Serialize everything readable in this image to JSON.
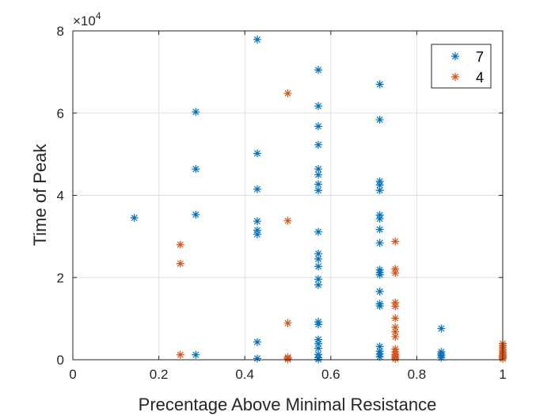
{
  "chart_data": {
    "type": "scatter",
    "title": "",
    "xlabel": "Precentage Above Minimal Resistance",
    "ylabel": "Time of Peak",
    "xlim": [
      0,
      1
    ],
    "ylim": [
      0,
      80000
    ],
    "y_exponent_label": {
      "base": "×10",
      "power": "4"
    },
    "x_ticks": [
      0,
      0.2,
      0.4,
      0.6,
      0.8,
      1
    ],
    "x_tick_labels": [
      "0",
      "0.2",
      "0.4",
      "0.6",
      "0.8",
      "1"
    ],
    "y_ticks": [
      0,
      20000,
      40000,
      60000,
      80000
    ],
    "y_tick_labels": [
      "0",
      "2",
      "4",
      "6",
      "8"
    ],
    "grid": true,
    "legend_position": "top-right",
    "marker": "asterisk",
    "series": [
      {
        "name": "7",
        "color": "#0072BD",
        "points": [
          [
            0.143,
            34500
          ],
          [
            0.286,
            60300
          ],
          [
            0.286,
            46400
          ],
          [
            0.286,
            35300
          ],
          [
            0.286,
            1200
          ],
          [
            0.429,
            77900
          ],
          [
            0.429,
            50200
          ],
          [
            0.429,
            41500
          ],
          [
            0.429,
            33700
          ],
          [
            0.429,
            31500
          ],
          [
            0.429,
            30500
          ],
          [
            0.429,
            4300
          ],
          [
            0.429,
            300
          ],
          [
            0.571,
            70500
          ],
          [
            0.571,
            61700
          ],
          [
            0.571,
            56800
          ],
          [
            0.571,
            52300
          ],
          [
            0.571,
            46400
          ],
          [
            0.571,
            45000
          ],
          [
            0.571,
            42700
          ],
          [
            0.571,
            41200
          ],
          [
            0.571,
            31100
          ],
          [
            0.571,
            25800
          ],
          [
            0.571,
            24500
          ],
          [
            0.571,
            22700
          ],
          [
            0.571,
            19600
          ],
          [
            0.571,
            18200
          ],
          [
            0.571,
            9200
          ],
          [
            0.571,
            8600
          ],
          [
            0.571,
            4900
          ],
          [
            0.571,
            3900
          ],
          [
            0.571,
            2800
          ],
          [
            0.571,
            1300
          ],
          [
            0.571,
            500
          ],
          [
            0.571,
            100
          ],
          [
            0.714,
            67000
          ],
          [
            0.714,
            58400
          ],
          [
            0.714,
            43400
          ],
          [
            0.714,
            42500
          ],
          [
            0.714,
            41200
          ],
          [
            0.714,
            35200
          ],
          [
            0.714,
            34300
          ],
          [
            0.714,
            31700
          ],
          [
            0.714,
            28400
          ],
          [
            0.714,
            21900
          ],
          [
            0.714,
            21200
          ],
          [
            0.714,
            20700
          ],
          [
            0.714,
            16600
          ],
          [
            0.714,
            13600
          ],
          [
            0.714,
            13100
          ],
          [
            0.714,
            3200
          ],
          [
            0.714,
            2100
          ],
          [
            0.714,
            1400
          ],
          [
            0.714,
            700
          ],
          [
            0.857,
            7600
          ],
          [
            0.857,
            1900
          ],
          [
            0.857,
            1400
          ],
          [
            0.857,
            1000
          ],
          [
            0.857,
            500
          ]
        ]
      },
      {
        "name": "4",
        "color": "#D95319",
        "points": [
          [
            0.25,
            28000
          ],
          [
            0.25,
            23400
          ],
          [
            0.25,
            1200
          ],
          [
            0.5,
            64800
          ],
          [
            0.5,
            33800
          ],
          [
            0.5,
            8900
          ],
          [
            0.5,
            600
          ],
          [
            0.5,
            300
          ],
          [
            0.5,
            100
          ],
          [
            0.75,
            28800
          ],
          [
            0.75,
            22100
          ],
          [
            0.75,
            21100
          ],
          [
            0.75,
            13900
          ],
          [
            0.75,
            13000
          ],
          [
            0.75,
            10100
          ],
          [
            0.75,
            7900
          ],
          [
            0.75,
            6800
          ],
          [
            0.75,
            5600
          ],
          [
            0.75,
            2600
          ],
          [
            0.75,
            1900
          ],
          [
            0.75,
            1300
          ],
          [
            0.75,
            900
          ],
          [
            0.75,
            500
          ],
          [
            0.75,
            200
          ],
          [
            1.0,
            3900
          ],
          [
            1.0,
            3400
          ],
          [
            1.0,
            2900
          ],
          [
            1.0,
            2400
          ],
          [
            1.0,
            1900
          ],
          [
            1.0,
            1500
          ],
          [
            1.0,
            1100
          ],
          [
            1.0,
            800
          ],
          [
            1.0,
            500
          ],
          [
            1.0,
            200
          ]
        ]
      }
    ]
  }
}
